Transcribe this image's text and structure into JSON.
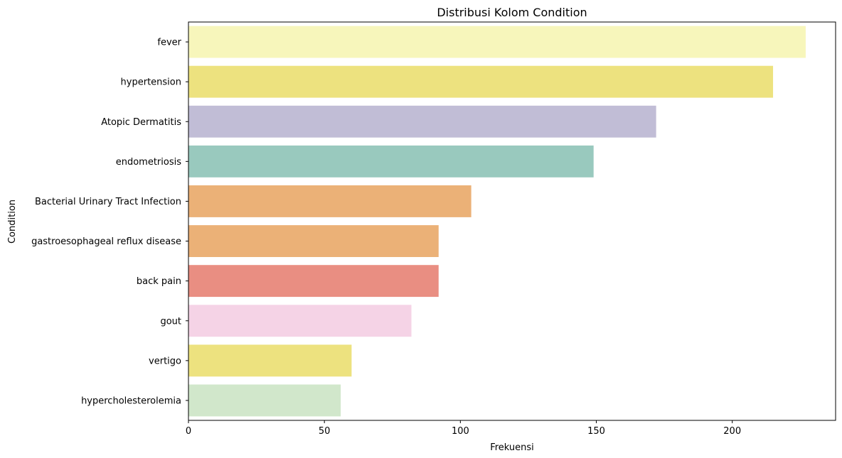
{
  "chart_data": {
    "type": "bar",
    "orientation": "horizontal",
    "title": "Distribusi Kolom Condition",
    "xlabel": "Frekuensi",
    "ylabel": "Condition",
    "xlim": [
      0,
      238
    ],
    "xticks": [
      0,
      50,
      100,
      150,
      200
    ],
    "grid": false,
    "categories": [
      "fever",
      "hypertension",
      "Atopic Dermatitis",
      "endometriosis",
      "Bacterial Urinary Tract Infection",
      "gastroesophageal reflux disease",
      "back pain",
      "gout",
      "vertigo",
      "hypercholesterolemia"
    ],
    "values": [
      227,
      215,
      172,
      149,
      104,
      92,
      92,
      82,
      60,
      56
    ],
    "colors": [
      "#f7f6bb",
      "#ede27f",
      "#c1bdd6",
      "#99c9be",
      "#ebb177",
      "#ebb177",
      "#e98e82",
      "#f5d3e6",
      "#ede27f",
      "#d1e7cb"
    ]
  }
}
